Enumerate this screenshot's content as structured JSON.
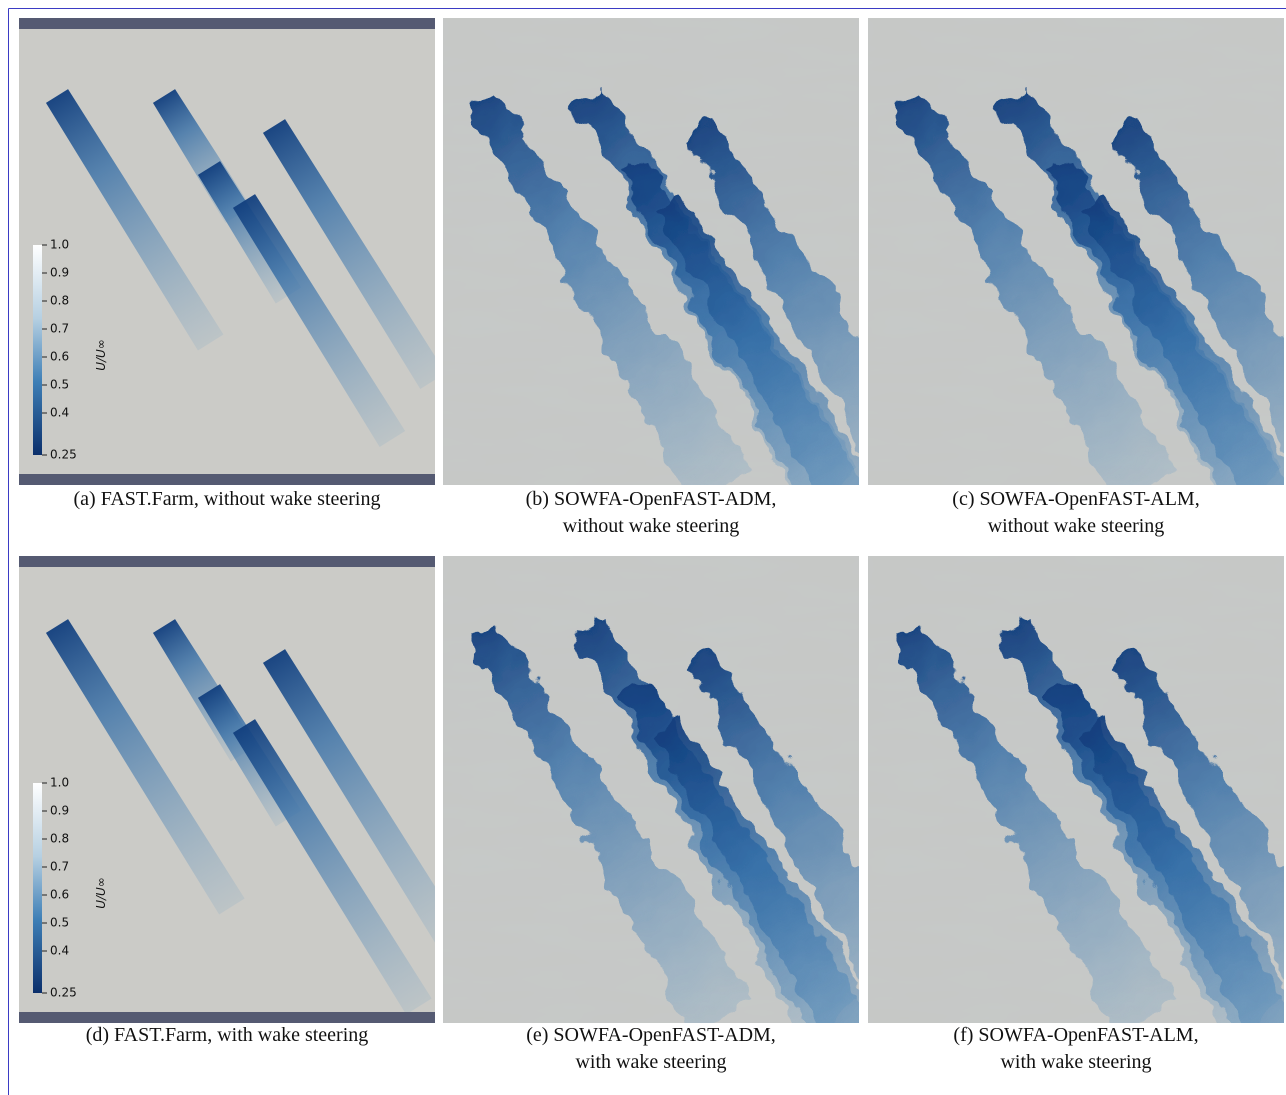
{
  "panels": [
    {
      "caption": [
        "(a) FAST.Farm, without wake steering"
      ],
      "colorbar": {
        "label": "U/U∞",
        "ticks": [
          "1.0",
          "0.9",
          "0.8",
          "0.7",
          "0.6",
          "0.5",
          "0.4",
          "0.25"
        ]
      }
    },
    {
      "caption": [
        "(b) SOWFA-OpenFAST-ADM,",
        "without wake steering"
      ]
    },
    {
      "caption": [
        "(c) SOWFA-OpenFAST-ALM,",
        "without wake steering"
      ]
    },
    {
      "caption": [
        "(d) FAST.Farm, with wake steering"
      ],
      "colorbar": {
        "label": "U/U∞",
        "ticks": [
          "1.0",
          "0.9",
          "0.8",
          "0.7",
          "0.6",
          "0.5",
          "0.4",
          "0.25"
        ]
      }
    },
    {
      "caption": [
        "(e) SOWFA-OpenFAST-ADM,",
        "with wake steering"
      ]
    },
    {
      "caption": [
        "(f) SOWFA-OpenFAST-ALM,",
        "with wake steering"
      ]
    }
  ]
}
